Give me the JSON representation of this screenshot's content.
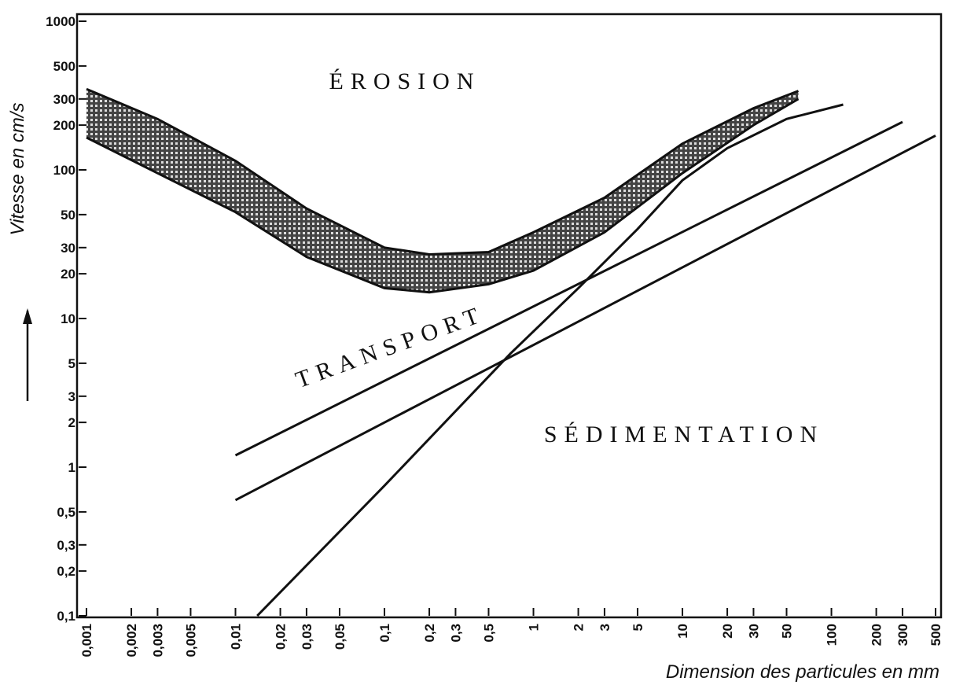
{
  "chart_data": {
    "type": "line",
    "x_label": "Dimension des particules en mm",
    "y_label": "Vitesse en cm/s",
    "xscale": "log",
    "yscale": "log",
    "xlim": [
      0.001,
      500
    ],
    "ylim": [
      0.1,
      1000
    ],
    "xticks": [
      {
        "value": 0.001,
        "label": "0,001"
      },
      {
        "value": 0.002,
        "label": "0,002"
      },
      {
        "value": 0.003,
        "label": "0,003"
      },
      {
        "value": 0.005,
        "label": "0,005"
      },
      {
        "value": 0.01,
        "label": "0,01"
      },
      {
        "value": 0.02,
        "label": "0,02"
      },
      {
        "value": 0.03,
        "label": "0,03"
      },
      {
        "value": 0.05,
        "label": "0,05"
      },
      {
        "value": 0.1,
        "label": "0,1"
      },
      {
        "value": 0.2,
        "label": "0,2"
      },
      {
        "value": 0.3,
        "label": "0,3"
      },
      {
        "value": 0.5,
        "label": "0,5"
      },
      1,
      2,
      3,
      5,
      10,
      20,
      30,
      50,
      100,
      200,
      300,
      500
    ],
    "yticks": [
      {
        "value": 0.1,
        "label": "0,1"
      },
      {
        "value": 0.2,
        "label": "0,2"
      },
      {
        "value": 0.3,
        "label": "0,3"
      },
      {
        "value": 0.5,
        "label": "0,5"
      },
      1,
      2,
      3,
      5,
      10,
      20,
      30,
      50,
      100,
      200,
      300,
      500,
      1000
    ],
    "annotations": [
      "ÉROSION",
      "TRANSPORT",
      "SÉDIMENTATION"
    ],
    "series": [
      {
        "color": "#111",
        "x": [
          0.001,
          0.003,
          0.01,
          0.03,
          0.1,
          0.2,
          0.5,
          1,
          3,
          10,
          30,
          60
        ],
        "values": [
          350,
          220,
          115,
          55,
          30,
          27,
          28,
          38,
          65,
          150,
          260,
          340
        ]
      },
      {
        "color": "#111",
        "x": [
          0.001,
          0.003,
          0.01,
          0.03,
          0.1,
          0.2,
          0.5,
          1,
          3,
          10,
          30,
          60
        ],
        "values": [
          165,
          95,
          52,
          26,
          16,
          15,
          17,
          21,
          38,
          95,
          200,
          300
        ]
      },
      {
        "color": "#111",
        "x": [
          0.01,
          300
        ],
        "values": [
          1.2,
          210
        ]
      },
      {
        "color": "#111",
        "x": [
          0.01,
          500
        ],
        "values": [
          0.6,
          170
        ]
      },
      {
        "color": "#111",
        "x": [
          0.014,
          0.1,
          0.7,
          2,
          5,
          10,
          20,
          50,
          120
        ],
        "values": [
          0.1,
          0.75,
          5.8,
          16,
          40,
          85,
          140,
          220,
          275
        ]
      }
    ]
  }
}
